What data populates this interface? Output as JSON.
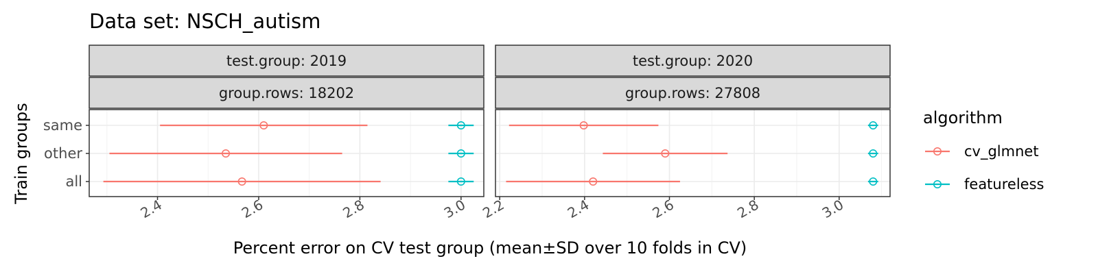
{
  "chart_data": {
    "type": "scatter",
    "title": "Data set: NSCH_autism",
    "xlabel": "Percent error on CV test group (mean±SD over 10 folds in CV)",
    "ylabel": "Train groups",
    "categories": [
      "same",
      "other",
      "all"
    ],
    "legend": {
      "title": "algorithm",
      "position": "right",
      "entries": [
        {
          "name": "cv_glmnet",
          "color": "#F8766D"
        },
        {
          "name": "featureless",
          "color": "#00BFC4"
        }
      ]
    },
    "panels": [
      {
        "strip_top": "test.group: 2019",
        "strip_bottom": "group.rows: 18202",
        "xlim": [
          2.265,
          3.045
        ],
        "ticks": [
          2.4,
          2.6,
          2.8,
          3.0
        ],
        "tick_labels": [
          "2.4",
          "2.6",
          "2.8",
          "3.0"
        ],
        "series": [
          {
            "name": "cv_glmnet",
            "points": [
              {
                "y": "same",
                "mean": 2.61,
                "lo": 2.405,
                "hi": 2.815
              },
              {
                "y": "other",
                "mean": 2.535,
                "lo": 2.305,
                "hi": 2.765
              },
              {
                "y": "all",
                "mean": 2.567,
                "lo": 2.293,
                "hi": 2.841
              }
            ]
          },
          {
            "name": "featureless",
            "points": [
              {
                "y": "same",
                "mean": 3.0,
                "lo": 2.975,
                "hi": 3.025
              },
              {
                "y": "other",
                "mean": 3.0,
                "lo": 2.975,
                "hi": 3.025
              },
              {
                "y": "all",
                "mean": 3.0,
                "lo": 2.975,
                "hi": 3.025
              }
            ]
          }
        ]
      },
      {
        "strip_top": "test.group: 2020",
        "strip_bottom": "group.rows: 27808",
        "xlim": [
          2.19,
          3.12
        ],
        "ticks": [
          2.2,
          2.4,
          2.6,
          2.8,
          3.0
        ],
        "tick_labels": [
          "2.2",
          "2.4",
          "2.6",
          "2.8",
          "3.0"
        ],
        "series": [
          {
            "name": "cv_glmnet",
            "points": [
              {
                "y": "same",
                "mean": 2.398,
                "lo": 2.222,
                "hi": 2.574
              },
              {
                "y": "other",
                "mean": 2.59,
                "lo": 2.443,
                "hi": 2.737
              },
              {
                "y": "all",
                "mean": 2.42,
                "lo": 2.215,
                "hi": 2.625
              }
            ]
          },
          {
            "name": "featureless",
            "points": [
              {
                "y": "same",
                "mean": 3.08,
                "lo": 3.068,
                "hi": 3.092
              },
              {
                "y": "other",
                "mean": 3.08,
                "lo": 3.068,
                "hi": 3.092
              },
              {
                "y": "all",
                "mean": 3.08,
                "lo": 3.068,
                "hi": 3.092
              }
            ]
          }
        ]
      }
    ]
  }
}
